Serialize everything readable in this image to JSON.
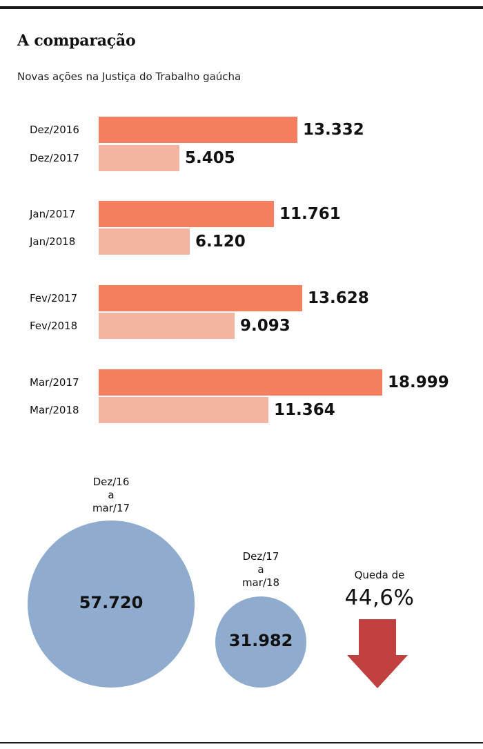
{
  "title": "A comparação",
  "subtitle": "Novas ações na Justiça do Trabalho gaúcha",
  "colors": {
    "prior_year": "#f47f5f",
    "current_year": "#f4b4a2",
    "circle": "#8fabce",
    "arrow": "#c0413f"
  },
  "chart_data": [
    {
      "type": "bar",
      "orientation": "horizontal",
      "title": "",
      "categories": [
        "Dez/2016",
        "Dez/2017",
        "Jan/2017",
        "Jan/2018",
        "Fev/2017",
        "Fev/2018",
        "Mar/2017",
        "Mar/2018"
      ],
      "values": [
        13332,
        5405,
        11761,
        6120,
        13628,
        9093,
        18999,
        11364
      ],
      "value_labels": [
        "13.332",
        "5.405",
        "11.761",
        "6.120",
        "13.628",
        "9.093",
        "18.999",
        "11.364"
      ],
      "groups": [
        {
          "pair": [
            "Dez/2016",
            "Dez/2017"
          ]
        },
        {
          "pair": [
            "Jan/2017",
            "Jan/2018"
          ]
        },
        {
          "pair": [
            "Fev/2017",
            "Fev/2018"
          ]
        },
        {
          "pair": [
            "Mar/2017",
            "Mar/2018"
          ]
        }
      ],
      "xlim": [
        0,
        18999
      ],
      "grid": false,
      "legend": "none"
    },
    {
      "type": "bubble",
      "title": "",
      "circles": [
        {
          "label": [
            "Dez/16",
            "a",
            "mar/17"
          ],
          "value": 57720,
          "value_label": "57.720"
        },
        {
          "label": [
            "Dez/17",
            "a",
            "mar/18"
          ],
          "value": 31982,
          "value_label": "31.982"
        }
      ]
    }
  ],
  "drop": {
    "label": "Queda de",
    "value": "44,6%"
  }
}
